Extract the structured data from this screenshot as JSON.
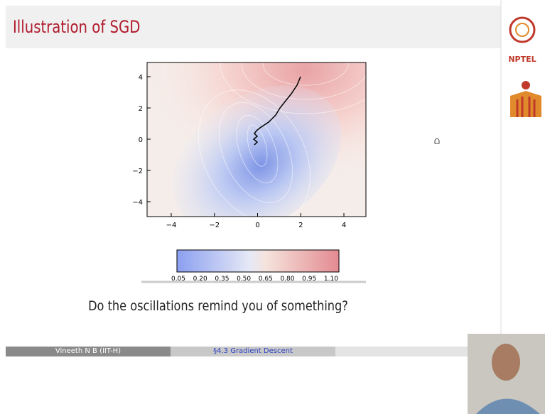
{
  "header": {
    "title": "Illustration of SGD"
  },
  "sidebar": {
    "logo_label": "NPTEL"
  },
  "plot": {
    "x_tick_labels": [
      "−4",
      "−2",
      "0",
      "2",
      "4"
    ],
    "y_tick_labels": [
      "4",
      "2",
      "0",
      "−2",
      "−4"
    ],
    "colorbar_labels": [
      "0.05",
      "0.20",
      "0.35",
      "0.50",
      "0.65",
      "0.80",
      "0.95",
      "1.10"
    ]
  },
  "question": "Do the oscillations remind you of something?",
  "footer": {
    "author": "Vineeth N B  (IIT-H)",
    "section": "§4.3 Gradient Descent"
  }
}
